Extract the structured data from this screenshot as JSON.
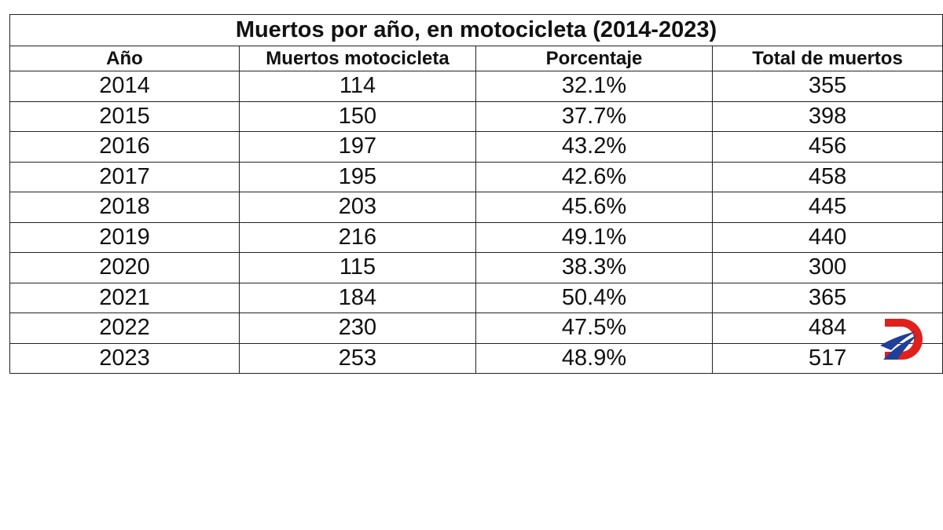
{
  "table": {
    "title": "Muertos por año, en motocicleta (2014-2023)",
    "header": [
      "Año",
      "Muertos motocicleta",
      "Porcentaje",
      "Total de muertos"
    ],
    "rows": [
      [
        2014,
        114,
        "32.1%",
        355
      ],
      [
        2015,
        150,
        "37.7%",
        398
      ],
      [
        2016,
        197,
        "43.2%",
        456
      ],
      [
        2017,
        195,
        "42.6%",
        458
      ],
      [
        2018,
        203,
        "45.6%",
        445
      ],
      [
        2019,
        216,
        "49.1%",
        440
      ],
      [
        2020,
        115,
        "38.3%",
        300
      ],
      [
        2021,
        184,
        "50.4%",
        365
      ],
      [
        2022,
        230,
        "47.5%",
        484
      ],
      [
        2023,
        253,
        "48.9%",
        517
      ]
    ]
  }
}
